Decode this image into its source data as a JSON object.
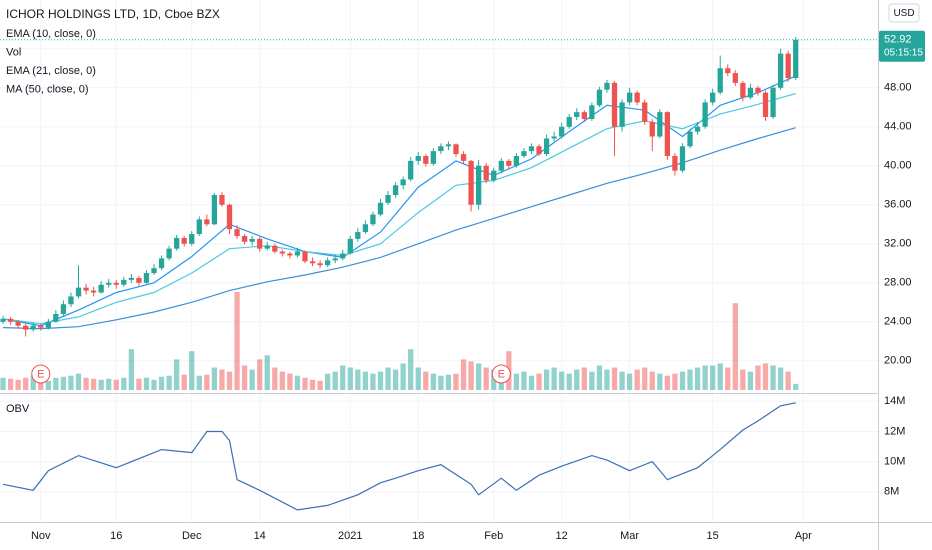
{
  "chart_data": {
    "type": "candlestick",
    "title": "ICHOR HOLDINGS LTD, 1D, Cboe BZX",
    "currency": "USD",
    "up_color": "#26a69a",
    "down_color": "#ef5350",
    "xlim": [
      -0.4,
      115.9
    ],
    "xticks": [
      {
        "value": 5,
        "label": "Nov"
      },
      {
        "value": 15,
        "label": "16"
      },
      {
        "value": 25,
        "label": "Dec"
      },
      {
        "value": 34,
        "label": "14"
      },
      {
        "value": 46,
        "label": "2021"
      },
      {
        "value": 55,
        "label": "18"
      },
      {
        "value": 65,
        "label": "Feb"
      },
      {
        "value": 74,
        "label": "12"
      },
      {
        "value": 83,
        "label": "Mar"
      },
      {
        "value": 94,
        "label": "15"
      },
      {
        "value": 106,
        "label": "Apr"
      }
    ],
    "ylim": [
      16.8,
      57.0
    ],
    "yticks": [
      {
        "value": 20,
        "label": "20.00"
      },
      {
        "value": 24,
        "label": "24.00"
      },
      {
        "value": 28,
        "label": "28.00"
      },
      {
        "value": 32,
        "label": "32.00"
      },
      {
        "value": 36,
        "label": "36.00"
      },
      {
        "value": 40,
        "label": "40.00"
      },
      {
        "value": 44,
        "label": "44.00"
      },
      {
        "value": 48,
        "label": "48.00"
      },
      {
        "value": 52,
        "label": "52.00"
      }
    ],
    "grid": true,
    "candles": [
      [
        24.0,
        24.6,
        23.8,
        24.3
      ],
      [
        24.3,
        24.5,
        23.7,
        24.0
      ],
      [
        24.0,
        24.2,
        23.3,
        23.6
      ],
      [
        23.6,
        23.8,
        22.5,
        23.2
      ],
      [
        23.2,
        23.9,
        23.0,
        23.6
      ],
      [
        23.6,
        23.8,
        23.1,
        23.4
      ],
      [
        23.4,
        24.3,
        23.2,
        24.0
      ],
      [
        24.0,
        25.2,
        23.9,
        24.8
      ],
      [
        24.8,
        26.2,
        24.6,
        25.8
      ],
      [
        25.8,
        27.0,
        25.5,
        26.6
      ],
      [
        26.6,
        29.8,
        26.4,
        27.5
      ],
      [
        27.5,
        27.9,
        26.8,
        27.2
      ],
      [
        27.2,
        27.6,
        26.6,
        27.0
      ],
      [
        27.0,
        28.2,
        26.9,
        27.8
      ],
      [
        27.8,
        28.4,
        27.5,
        28.0
      ],
      [
        28.0,
        28.3,
        27.4,
        27.8
      ],
      [
        27.8,
        28.6,
        27.6,
        28.3
      ],
      [
        28.3,
        28.9,
        28.0,
        28.5
      ],
      [
        28.5,
        28.7,
        27.7,
        28.0
      ],
      [
        28.0,
        29.3,
        27.9,
        29.0
      ],
      [
        29.0,
        29.9,
        28.8,
        29.5
      ],
      [
        29.5,
        30.8,
        29.3,
        30.5
      ],
      [
        30.5,
        31.8,
        30.3,
        31.5
      ],
      [
        31.5,
        32.9,
        31.3,
        32.6
      ],
      [
        32.6,
        32.8,
        31.7,
        32.0
      ],
      [
        32.0,
        33.3,
        31.8,
        33.0
      ],
      [
        33.0,
        34.8,
        32.8,
        34.5
      ],
      [
        34.5,
        35.0,
        33.8,
        34.0
      ],
      [
        34.0,
        37.2,
        33.9,
        37.0
      ],
      [
        37.0,
        37.3,
        35.8,
        36.0
      ],
      [
        36.0,
        36.1,
        33.0,
        33.5
      ],
      [
        33.5,
        33.9,
        32.5,
        32.8
      ],
      [
        32.8,
        33.0,
        31.9,
        32.2
      ],
      [
        32.2,
        32.8,
        31.8,
        32.5
      ],
      [
        32.5,
        32.7,
        31.2,
        31.5
      ],
      [
        31.5,
        32.2,
        31.3,
        31.8
      ],
      [
        31.8,
        32.0,
        31.0,
        31.2
      ],
      [
        31.2,
        31.4,
        30.7,
        31.0
      ],
      [
        31.0,
        31.2,
        30.5,
        30.8
      ],
      [
        30.8,
        31.6,
        30.6,
        31.2
      ],
      [
        31.2,
        31.3,
        30.0,
        30.2
      ],
      [
        30.2,
        30.6,
        29.7,
        30.0
      ],
      [
        30.0,
        30.3,
        29.5,
        29.8
      ],
      [
        29.8,
        30.6,
        29.6,
        30.3
      ],
      [
        30.3,
        30.9,
        30.0,
        30.5
      ],
      [
        30.5,
        31.4,
        30.3,
        31.0
      ],
      [
        31.0,
        32.8,
        30.9,
        32.5
      ],
      [
        32.5,
        33.6,
        32.2,
        33.2
      ],
      [
        33.2,
        34.4,
        33.0,
        34.0
      ],
      [
        34.0,
        35.3,
        33.8,
        35.0
      ],
      [
        35.0,
        36.6,
        34.8,
        36.2
      ],
      [
        36.2,
        37.4,
        36.0,
        37.0
      ],
      [
        37.0,
        38.3,
        36.7,
        38.0
      ],
      [
        38.0,
        38.9,
        37.6,
        38.6
      ],
      [
        38.6,
        40.9,
        38.4,
        40.5
      ],
      [
        40.5,
        41.4,
        40.1,
        41.0
      ],
      [
        41.0,
        41.2,
        39.9,
        40.2
      ],
      [
        40.2,
        41.8,
        40.0,
        41.5
      ],
      [
        41.5,
        42.3,
        41.2,
        42.0
      ],
      [
        42.0,
        42.5,
        41.6,
        42.2
      ],
      [
        42.2,
        42.3,
        40.9,
        41.2
      ],
      [
        41.2,
        41.5,
        40.2,
        40.5
      ],
      [
        40.5,
        40.6,
        35.3,
        36.0
      ],
      [
        36.0,
        40.6,
        35.5,
        40.0
      ],
      [
        40.0,
        40.3,
        38.2,
        38.5
      ],
      [
        38.5,
        39.8,
        38.3,
        39.5
      ],
      [
        39.5,
        40.8,
        39.2,
        40.5
      ],
      [
        40.5,
        40.7,
        39.7,
        40.0
      ],
      [
        40.0,
        41.3,
        39.8,
        41.0
      ],
      [
        41.0,
        41.8,
        40.8,
        41.5
      ],
      [
        41.5,
        42.3,
        41.2,
        42.0
      ],
      [
        42.0,
        42.2,
        41.0,
        41.2
      ],
      [
        41.2,
        43.2,
        41.0,
        42.8
      ],
      [
        42.8,
        43.5,
        42.5,
        43.0
      ],
      [
        43.0,
        44.4,
        42.8,
        44.0
      ],
      [
        44.0,
        45.3,
        43.8,
        45.0
      ],
      [
        45.0,
        45.9,
        44.7,
        45.5
      ],
      [
        45.5,
        45.7,
        44.5,
        44.8
      ],
      [
        44.8,
        46.5,
        44.6,
        46.2
      ],
      [
        46.2,
        48.1,
        46.0,
        47.8
      ],
      [
        47.8,
        48.8,
        47.5,
        48.5
      ],
      [
        48.5,
        48.7,
        41.0,
        44.0
      ],
      [
        44.0,
        46.8,
        43.5,
        46.5
      ],
      [
        46.5,
        48.0,
        46.2,
        47.5
      ],
      [
        47.5,
        47.7,
        46.2,
        46.5
      ],
      [
        46.5,
        46.8,
        44.2,
        44.5
      ],
      [
        44.5,
        44.8,
        41.5,
        43.0
      ],
      [
        43.0,
        45.8,
        42.8,
        45.5
      ],
      [
        45.5,
        45.6,
        40.6,
        41.0
      ],
      [
        41.0,
        41.3,
        39.0,
        39.5
      ],
      [
        39.5,
        42.3,
        39.3,
        42.0
      ],
      [
        42.0,
        43.8,
        41.8,
        43.5
      ],
      [
        43.5,
        44.5,
        43.2,
        44.0
      ],
      [
        44.0,
        46.8,
        43.8,
        46.5
      ],
      [
        46.5,
        47.9,
        46.2,
        47.5
      ],
      [
        47.5,
        51.3,
        47.3,
        50.0
      ],
      [
        50.0,
        50.4,
        49.2,
        49.5
      ],
      [
        49.5,
        49.8,
        48.2,
        48.5
      ],
      [
        48.5,
        48.7,
        46.6,
        47.0
      ],
      [
        47.0,
        48.4,
        46.8,
        48.0
      ],
      [
        48.0,
        48.2,
        47.2,
        47.5
      ],
      [
        47.5,
        47.7,
        44.6,
        45.0
      ],
      [
        45.0,
        48.3,
        44.8,
        48.0
      ],
      [
        48.0,
        52.0,
        47.8,
        51.5
      ],
      [
        51.5,
        51.8,
        48.6,
        49.0
      ],
      [
        49.0,
        53.2,
        48.8,
        52.92
      ]
    ],
    "indicators": [
      {
        "name": "EMA (10, close, 0)",
        "kind": "line",
        "color": "#2196f3",
        "x": [
          0,
          5,
          10,
          15,
          20,
          25,
          30,
          35,
          40,
          45,
          50,
          55,
          60,
          65,
          70,
          75,
          80,
          85,
          90,
          95,
          100,
          105
        ],
        "values": [
          24.3,
          23.6,
          25.2,
          27.0,
          28.0,
          30.7,
          34.0,
          32.5,
          31.2,
          30.6,
          33.2,
          37.8,
          40.5,
          39.0,
          40.7,
          43.5,
          46.2,
          45.7,
          43.0,
          46.2,
          47.5,
          49.2
        ]
      },
      {
        "name": "Vol",
        "kind": "volume",
        "values": [
          120000,
          110000,
          100000,
          120000,
          140000,
          100000,
          90000,
          120000,
          130000,
          140000,
          160000,
          120000,
          110000,
          100000,
          110000,
          100000,
          120000,
          400000,
          110000,
          120000,
          100000,
          130000,
          140000,
          300000,
          150000,
          380000,
          140000,
          150000,
          220000,
          200000,
          180000,
          960000,
          240000,
          200000,
          300000,
          340000,
          220000,
          180000,
          160000,
          140000,
          120000,
          100000,
          90000,
          160000,
          180000,
          240000,
          220000,
          200000,
          180000,
          160000,
          180000,
          220000,
          200000,
          260000,
          400000,
          220000,
          180000,
          160000,
          140000,
          150000,
          160000,
          300000,
          280000,
          260000,
          220000,
          200000,
          180000,
          380000,
          160000,
          180000,
          140000,
          160000,
          200000,
          220000,
          180000,
          160000,
          200000,
          220000,
          180000,
          240000,
          200000,
          220000,
          180000,
          160000,
          200000,
          220000,
          180000,
          160000,
          140000,
          160000,
          180000,
          200000,
          220000,
          240000,
          240000,
          260000,
          220000,
          850000,
          200000,
          180000,
          240000,
          260000,
          240000,
          220000,
          180000,
          60000
        ]
      },
      {
        "name": "EMA (21, close, 0)",
        "kind": "line",
        "color": "#4dc9e0",
        "x": [
          0,
          5,
          10,
          15,
          20,
          25,
          30,
          35,
          40,
          45,
          50,
          55,
          60,
          65,
          70,
          75,
          80,
          85,
          90,
          95,
          100,
          105
        ],
        "values": [
          24.3,
          23.8,
          24.5,
          26.0,
          27.0,
          29.0,
          31.5,
          31.8,
          31.2,
          30.8,
          32.0,
          35.2,
          38.0,
          38.5,
          39.8,
          41.8,
          43.8,
          44.6,
          43.8,
          45.3,
          46.3,
          47.4
        ]
      },
      {
        "name": "MA (50, close, 0)",
        "kind": "line",
        "color": "#3c8fd8",
        "x": [
          0,
          5,
          10,
          15,
          20,
          25,
          30,
          35,
          40,
          45,
          50,
          55,
          60,
          65,
          70,
          75,
          80,
          85,
          90,
          95,
          100,
          105
        ],
        "values": [
          23.4,
          23.3,
          23.5,
          24.2,
          25.0,
          26.0,
          27.2,
          28.1,
          28.8,
          29.6,
          30.6,
          32.0,
          33.4,
          34.6,
          35.8,
          37.0,
          38.2,
          39.2,
          40.3,
          41.6,
          42.8,
          43.9
        ]
      }
    ],
    "last_price": {
      "value": 52.92,
      "countdown": "05:15:15"
    },
    "earnings": [
      {
        "x": 5,
        "label": "E"
      },
      {
        "x": 66,
        "label": "E"
      }
    ],
    "obv": {
      "name": "OBV",
      "color": "#3a6fb5",
      "ylim": [
        6000000,
        14350000
      ],
      "yticks": [
        {
          "value": 8000000,
          "label": "8M"
        },
        {
          "value": 10000000,
          "label": "10M"
        },
        {
          "value": 12000000,
          "label": "12M"
        },
        {
          "value": 14000000,
          "label": "14M"
        }
      ],
      "x": [
        0,
        4,
        6,
        10,
        15,
        21,
        25,
        27,
        29,
        30,
        31,
        34,
        39,
        43,
        47,
        50,
        52,
        55,
        58,
        62,
        63,
        66,
        68,
        71,
        74,
        78,
        80,
        83,
        86,
        88,
        92,
        95,
        98,
        100,
        103,
        105
      ],
      "values": [
        8500000,
        8100000,
        9400000,
        10400000,
        9600000,
        10800000,
        10600000,
        12000000,
        12000000,
        11400000,
        8800000,
        8100000,
        6800000,
        7100000,
        7800000,
        8600000,
        8900000,
        9400000,
        9800000,
        8500000,
        7800000,
        8900000,
        8100000,
        9100000,
        9700000,
        10400000,
        10100000,
        9400000,
        10000000,
        8800000,
        9600000,
        10800000,
        12100000,
        12700000,
        13700000,
        13900000
      ]
    }
  }
}
